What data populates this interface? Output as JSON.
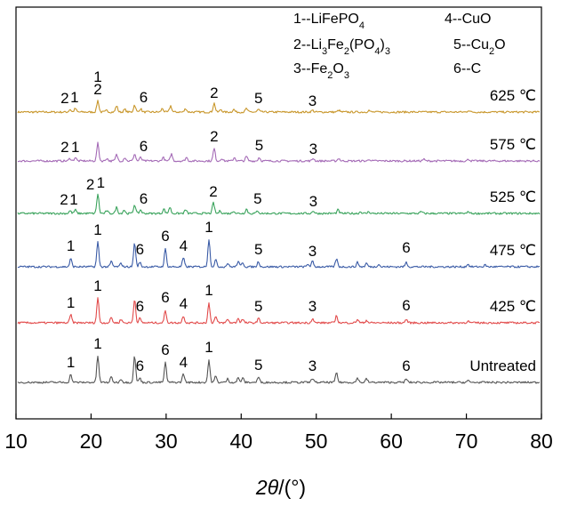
{
  "chart_data": {
    "type": "line",
    "xlim": [
      10,
      80
    ],
    "x_ticks": [
      10,
      20,
      30,
      40,
      50,
      60,
      70,
      80
    ],
    "x_tick_labels": [
      "10",
      "20",
      "30",
      "40",
      "50",
      "60",
      "70",
      "80"
    ],
    "xlabel_italic": "2θ",
    "xlabel_rest": "/(°)",
    "grid": false,
    "legend": [
      {
        "id": "1",
        "text": "1--LiFePO4"
      },
      {
        "id": "2",
        "text": "2--Li3Fe2(PO4)3"
      },
      {
        "id": "3",
        "text": "3--Fe2O3"
      },
      {
        "id": "4",
        "text": "4--CuO"
      },
      {
        "id": "5",
        "text": "5--Cu2O"
      },
      {
        "id": "6",
        "text": "6--C"
      }
    ],
    "series": [
      {
        "name": "625 ℃",
        "color": "#c8962a",
        "peaks": [
          {
            "x": 17.2,
            "h": 3
          },
          {
            "x": 17.9,
            "h": 4
          },
          {
            "x": 20.9,
            "h": 13
          },
          {
            "x": 22.1,
            "h": 2
          },
          {
            "x": 23.4,
            "h": 7
          },
          {
            "x": 24.5,
            "h": 3
          },
          {
            "x": 25.8,
            "h": 8
          },
          {
            "x": 26.6,
            "h": 4
          },
          {
            "x": 29.5,
            "h": 4
          },
          {
            "x": 30.6,
            "h": 7
          },
          {
            "x": 32.6,
            "h": 4
          },
          {
            "x": 36.4,
            "h": 10
          },
          {
            "x": 37.3,
            "h": 3
          },
          {
            "x": 39.0,
            "h": 3
          },
          {
            "x": 40.7,
            "h": 4
          },
          {
            "x": 42.3,
            "h": 3
          },
          {
            "x": 49.5,
            "h": 2
          },
          {
            "x": 53.0,
            "h": 2
          },
          {
            "x": 57.0,
            "h": 2
          },
          {
            "x": 70.3,
            "h": 2
          }
        ],
        "peak_labels": [
          {
            "text": "2",
            "x": 16.5,
            "h": 10
          },
          {
            "text": "1",
            "x": 17.8,
            "h": 11
          },
          {
            "text": "1",
            "x": 20.9,
            "h": 34
          },
          {
            "text": "2",
            "x": 20.9,
            "h": 20
          },
          {
            "text": "6",
            "x": 27.0,
            "h": 11
          },
          {
            "text": "2",
            "x": 36.4,
            "h": 16
          },
          {
            "text": "5",
            "x": 42.3,
            "h": 10
          },
          {
            "text": "3",
            "x": 49.5,
            "h": 7
          }
        ],
        "label": "625 ℃"
      },
      {
        "name": "575 ℃",
        "color": "#a46ab6",
        "peaks": [
          {
            "x": 17.2,
            "h": 3
          },
          {
            "x": 17.9,
            "h": 4
          },
          {
            "x": 20.9,
            "h": 20
          },
          {
            "x": 22.1,
            "h": 3
          },
          {
            "x": 23.4,
            "h": 7
          },
          {
            "x": 24.5,
            "h": 4
          },
          {
            "x": 25.8,
            "h": 8
          },
          {
            "x": 26.6,
            "h": 4
          },
          {
            "x": 29.6,
            "h": 4
          },
          {
            "x": 30.7,
            "h": 8
          },
          {
            "x": 32.7,
            "h": 4
          },
          {
            "x": 36.4,
            "h": 14
          },
          {
            "x": 37.4,
            "h": 3
          },
          {
            "x": 39.1,
            "h": 4
          },
          {
            "x": 40.7,
            "h": 5
          },
          {
            "x": 42.4,
            "h": 4
          },
          {
            "x": 49.6,
            "h": 3
          },
          {
            "x": 53.0,
            "h": 3
          },
          {
            "x": 57.1,
            "h": 2
          },
          {
            "x": 64.3,
            "h": 2
          },
          {
            "x": 70.3,
            "h": 2
          }
        ],
        "peak_labels": [
          {
            "text": "2",
            "x": 16.5,
            "h": 10
          },
          {
            "text": "1",
            "x": 17.9,
            "h": 10
          },
          {
            "text": "6",
            "x": 27.0,
            "h": 11
          },
          {
            "text": "2",
            "x": 36.4,
            "h": 22
          },
          {
            "text": "5",
            "x": 42.4,
            "h": 12
          },
          {
            "text": "3",
            "x": 49.6,
            "h": 8
          }
        ],
        "label": "575 ℃"
      },
      {
        "name": "525 ℃",
        "color": "#3aa35c",
        "peaks": [
          {
            "x": 17.2,
            "h": 3
          },
          {
            "x": 17.9,
            "h": 4
          },
          {
            "x": 20.9,
            "h": 22
          },
          {
            "x": 22.1,
            "h": 3
          },
          {
            "x": 23.4,
            "h": 7
          },
          {
            "x": 24.4,
            "h": 4
          },
          {
            "x": 25.8,
            "h": 10
          },
          {
            "x": 26.6,
            "h": 4
          },
          {
            "x": 29.7,
            "h": 5
          },
          {
            "x": 30.5,
            "h": 7
          },
          {
            "x": 32.6,
            "h": 4
          },
          {
            "x": 36.3,
            "h": 12
          },
          {
            "x": 37.2,
            "h": 3
          },
          {
            "x": 39.0,
            "h": 3
          },
          {
            "x": 40.7,
            "h": 5
          },
          {
            "x": 42.2,
            "h": 3
          },
          {
            "x": 49.6,
            "h": 3
          },
          {
            "x": 52.9,
            "h": 4
          },
          {
            "x": 55.9,
            "h": 2
          },
          {
            "x": 57.0,
            "h": 2
          },
          {
            "x": 64.0,
            "h": 2
          },
          {
            "x": 70.3,
            "h": 2
          }
        ],
        "peak_labels": [
          {
            "text": "2",
            "x": 16.4,
            "h": 10
          },
          {
            "text": "1",
            "x": 17.7,
            "h": 10
          },
          {
            "text": "2",
            "x": 19.9,
            "h": 27
          },
          {
            "text": "1",
            "x": 21.3,
            "h": 29
          },
          {
            "text": "6",
            "x": 27.0,
            "h": 11
          },
          {
            "text": "2",
            "x": 36.3,
            "h": 19
          },
          {
            "text": "5",
            "x": 42.2,
            "h": 11
          },
          {
            "text": "3",
            "x": 49.6,
            "h": 8
          }
        ],
        "label": "525 ℃"
      },
      {
        "name": "475 ℃",
        "color": "#3a5ba6",
        "peaks": [
          {
            "x": 17.3,
            "h": 9
          },
          {
            "x": 20.9,
            "h": 28
          },
          {
            "x": 22.7,
            "h": 6
          },
          {
            "x": 24.0,
            "h": 4
          },
          {
            "x": 25.8,
            "h": 27
          },
          {
            "x": 26.5,
            "h": 5
          },
          {
            "x": 29.9,
            "h": 20
          },
          {
            "x": 32.3,
            "h": 10
          },
          {
            "x": 35.7,
            "h": 31
          },
          {
            "x": 36.6,
            "h": 8
          },
          {
            "x": 38.2,
            "h": 4
          },
          {
            "x": 39.6,
            "h": 6
          },
          {
            "x": 40.2,
            "h": 5
          },
          {
            "x": 42.3,
            "h": 6
          },
          {
            "x": 48.9,
            "h": 3
          },
          {
            "x": 49.5,
            "h": 6
          },
          {
            "x": 52.7,
            "h": 9
          },
          {
            "x": 55.5,
            "h": 5
          },
          {
            "x": 56.7,
            "h": 4
          },
          {
            "x": 58.3,
            "h": 3
          },
          {
            "x": 62.0,
            "h": 5
          },
          {
            "x": 70.2,
            "h": 3
          },
          {
            "x": 72.5,
            "h": 2
          }
        ],
        "peak_labels": [
          {
            "text": "1",
            "x": 17.3,
            "h": 18
          },
          {
            "text": "1",
            "x": 20.9,
            "h": 36
          },
          {
            "text": "6",
            "x": 26.5,
            "h": 14
          },
          {
            "text": "6",
            "x": 29.9,
            "h": 29
          },
          {
            "text": "4",
            "x": 32.3,
            "h": 18
          },
          {
            "text": "1",
            "x": 35.7,
            "h": 39
          },
          {
            "text": "5",
            "x": 42.3,
            "h": 14
          },
          {
            "text": "3",
            "x": 49.5,
            "h": 12
          },
          {
            "text": "6",
            "x": 62.0,
            "h": 16
          }
        ],
        "label": "475 ℃"
      },
      {
        "name": "425 ℃",
        "color": "#e24b4b",
        "peaks": [
          {
            "x": 17.3,
            "h": 9
          },
          {
            "x": 20.9,
            "h": 28
          },
          {
            "x": 22.7,
            "h": 6
          },
          {
            "x": 24.0,
            "h": 4
          },
          {
            "x": 25.8,
            "h": 27
          },
          {
            "x": 26.5,
            "h": 5
          },
          {
            "x": 29.9,
            "h": 14
          },
          {
            "x": 32.3,
            "h": 8
          },
          {
            "x": 35.7,
            "h": 22
          },
          {
            "x": 36.6,
            "h": 7
          },
          {
            "x": 38.2,
            "h": 4
          },
          {
            "x": 39.6,
            "h": 5
          },
          {
            "x": 40.2,
            "h": 4
          },
          {
            "x": 42.3,
            "h": 5
          },
          {
            "x": 49.5,
            "h": 5
          },
          {
            "x": 52.7,
            "h": 8
          },
          {
            "x": 55.5,
            "h": 4
          },
          {
            "x": 56.7,
            "h": 3
          },
          {
            "x": 62.0,
            "h": 4
          },
          {
            "x": 70.2,
            "h": 2
          }
        ],
        "peak_labels": [
          {
            "text": "1",
            "x": 17.3,
            "h": 17
          },
          {
            "text": "1",
            "x": 20.9,
            "h": 36
          },
          {
            "text": "6",
            "x": 26.5,
            "h": 13
          },
          {
            "text": "6",
            "x": 29.9,
            "h": 23
          },
          {
            "text": "4",
            "x": 32.3,
            "h": 16
          },
          {
            "text": "1",
            "x": 35.7,
            "h": 31
          },
          {
            "text": "5",
            "x": 42.3,
            "h": 13
          },
          {
            "text": "3",
            "x": 49.5,
            "h": 13
          },
          {
            "text": "6",
            "x": 62.0,
            "h": 14
          }
        ],
        "label": "425 ℃"
      },
      {
        "name": "Untreated",
        "color": "#555555",
        "peaks": [
          {
            "x": 17.3,
            "h": 9
          },
          {
            "x": 20.9,
            "h": 30
          },
          {
            "x": 22.7,
            "h": 6
          },
          {
            "x": 24.0,
            "h": 4
          },
          {
            "x": 25.8,
            "h": 30
          },
          {
            "x": 26.5,
            "h": 5
          },
          {
            "x": 29.9,
            "h": 22
          },
          {
            "x": 32.3,
            "h": 10
          },
          {
            "x": 35.7,
            "h": 25
          },
          {
            "x": 36.6,
            "h": 7
          },
          {
            "x": 38.2,
            "h": 4
          },
          {
            "x": 39.6,
            "h": 5
          },
          {
            "x": 40.2,
            "h": 5
          },
          {
            "x": 42.3,
            "h": 6
          },
          {
            "x": 49.5,
            "h": 5
          },
          {
            "x": 52.7,
            "h": 11
          },
          {
            "x": 55.5,
            "h": 5
          },
          {
            "x": 56.7,
            "h": 4
          },
          {
            "x": 62.0,
            "h": 4
          },
          {
            "x": 70.2,
            "h": 2
          }
        ],
        "peak_labels": [
          {
            "text": "1",
            "x": 17.3,
            "h": 17
          },
          {
            "text": "1",
            "x": 20.9,
            "h": 38
          },
          {
            "text": "6",
            "x": 26.5,
            "h": 13
          },
          {
            "text": "6",
            "x": 29.9,
            "h": 31
          },
          {
            "text": "4",
            "x": 32.3,
            "h": 17
          },
          {
            "text": "1",
            "x": 35.7,
            "h": 34
          },
          {
            "text": "5",
            "x": 42.3,
            "h": 14
          },
          {
            "text": "3",
            "x": 49.5,
            "h": 13
          },
          {
            "text": "6",
            "x": 62.0,
            "h": 13
          }
        ],
        "label": "Untreated"
      }
    ]
  }
}
